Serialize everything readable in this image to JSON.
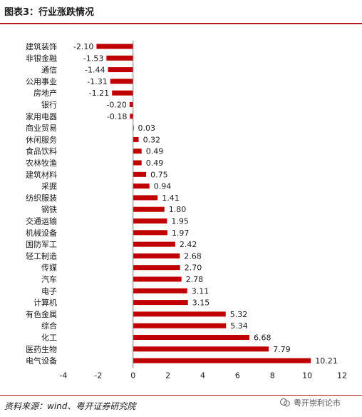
{
  "header": {
    "title": "图表3：行业涨跌情况"
  },
  "footer": {
    "source": "资料来源：wind、粤开证券研究院",
    "watermark": "粤开崇利论市"
  },
  "colors": {
    "bar": "#c00000",
    "rule": "#b31a1a",
    "axis": "#808080",
    "text": "#1a1a1a"
  },
  "chart_data": {
    "type": "bar",
    "orientation": "horizontal",
    "title": "",
    "xlabel": "",
    "ylabel": "",
    "xlim": [
      -4,
      12
    ],
    "xticks": [
      "-4",
      "-2",
      "0",
      "2",
      "4",
      "6",
      "8",
      "10",
      "12"
    ],
    "grid": false,
    "categories": [
      "建筑装饰",
      "非银金融",
      "通信",
      "公用事业",
      "房地产",
      "银行",
      "家用电器",
      "商业贸易",
      "休闲服务",
      "食品饮料",
      "农林牧渔",
      "建筑材料",
      "采掘",
      "纺织服装",
      "钢铁",
      "交通运输",
      "机械设备",
      "国防军工",
      "轻工制造",
      "传媒",
      "汽车",
      "电子",
      "计算机",
      "有色金属",
      "综合",
      "化工",
      "医药生物",
      "电气设备"
    ],
    "values": [
      -2.1,
      -1.53,
      -1.44,
      -1.31,
      -1.21,
      -0.2,
      -0.18,
      0.03,
      0.32,
      0.49,
      0.49,
      0.75,
      0.94,
      1.41,
      1.8,
      1.95,
      1.97,
      2.42,
      2.68,
      2.7,
      2.78,
      3.11,
      3.15,
      5.32,
      5.34,
      6.68,
      7.79,
      10.21
    ],
    "labels": [
      "-2.10",
      "-1.53",
      "-1.44",
      "-1.31",
      "-1.21",
      "-0.20",
      "-0.18",
      "0.03",
      "0.32",
      "0.49",
      "0.49",
      "0.75",
      "0.94",
      "1.41",
      "1.80",
      "1.95",
      "1.97",
      "2.42",
      "2.68",
      "2.70",
      "2.78",
      "3.11",
      "3.15",
      "5.32",
      "5.34",
      "6.68",
      "7.79",
      "10.21"
    ]
  }
}
